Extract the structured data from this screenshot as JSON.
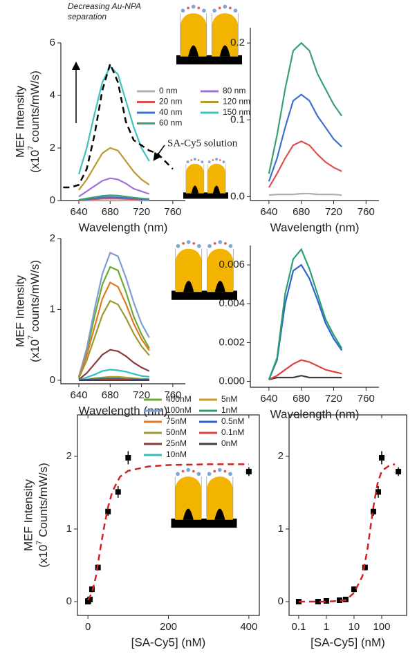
{
  "chart_data": [
    {
      "type": "line",
      "xlabel": "Wavelength (nm)",
      "ylabel": "MEF Intensity",
      "ylabel_unit": {
        "prefix": "(x10",
        "exponent": "7",
        "suffix": " counts/mW/s)"
      },
      "x": [
        640,
        650,
        660,
        670,
        680,
        690,
        700,
        710,
        720,
        730
      ],
      "xlim": [
        617,
        776
      ],
      "xticks": [
        640,
        680,
        720,
        760
      ],
      "ylim": [
        0,
        6
      ],
      "yticks": [
        0,
        2,
        4,
        6
      ],
      "series": [
        {
          "name": "0 nm",
          "color": "#b0b0b0",
          "values": [
            0,
            0,
            0,
            0,
            0,
            0,
            0,
            0,
            0,
            0
          ]
        },
        {
          "name": "20 nm",
          "color": "#e05050",
          "values": [
            0.01,
            0.03,
            0.05,
            0.07,
            0.07,
            0.07,
            0.06,
            0.05,
            0.04,
            0.03
          ]
        },
        {
          "name": "40 nm",
          "color": "#3f6fd0",
          "values": [
            0.02,
            0.05,
            0.09,
            0.12,
            0.13,
            0.12,
            0.1,
            0.08,
            0.06,
            0.05
          ]
        },
        {
          "name": "60 nm",
          "color": "#3aa070",
          "values": [
            0.03,
            0.08,
            0.13,
            0.18,
            0.2,
            0.19,
            0.15,
            0.11,
            0.08,
            0.06
          ]
        },
        {
          "name": "80 nm",
          "color": "#a070d8",
          "values": [
            0.15,
            0.35,
            0.55,
            0.75,
            0.85,
            0.8,
            0.65,
            0.45,
            0.35,
            0.25
          ]
        },
        {
          "name": "120 nm",
          "color": "#b89a30",
          "values": [
            0.4,
            0.8,
            1.3,
            1.8,
            2.0,
            1.9,
            1.5,
            1.1,
            0.8,
            0.6
          ]
        },
        {
          "name": "150 nm",
          "color": "#40c0c0",
          "values": [
            1.0,
            2.0,
            3.3,
            4.5,
            5.1,
            4.8,
            3.8,
            2.8,
            2.0,
            1.5
          ]
        },
        {
          "color": "#000000",
          "style": "dashed",
          "x": [
            620,
            630,
            640,
            650,
            660,
            670,
            680,
            690,
            700,
            710,
            720,
            730,
            740,
            750,
            760
          ],
          "values": [
            0.5,
            0.5,
            0.6,
            1.2,
            2.5,
            4.2,
            5.2,
            4.5,
            3.0,
            2.3,
            2.1,
            1.9,
            1.8,
            1.5,
            1.2
          ]
        }
      ],
      "annotations": [
        {
          "text": [
            "Decreasing Au-NPA",
            "separation"
          ]
        },
        {
          "text": [
            "SA-Cy5 solution"
          ]
        }
      ]
    },
    {
      "type": "line",
      "xlabel": "Wavelength (nm)",
      "x": [
        640,
        650,
        660,
        670,
        680,
        690,
        700,
        710,
        720,
        730
      ],
      "xlim": [
        617,
        776
      ],
      "xticks": [
        640,
        680,
        720,
        760
      ],
      "ylim": [
        -0.005,
        0.22
      ],
      "yticks": [
        {
          "value": 0,
          "label": "0.0"
        },
        0.1,
        0.2
      ],
      "series": [
        {
          "color": "#b0b0b0",
          "values": [
            0.002,
            0.003,
            0.003,
            0.003,
            0.004,
            0.004,
            0.003,
            0.003,
            0.003,
            0.002
          ]
        },
        {
          "color": "#e05050",
          "values": [
            0.012,
            0.03,
            0.05,
            0.067,
            0.072,
            0.067,
            0.055,
            0.045,
            0.038,
            0.033
          ]
        },
        {
          "color": "#3f6fd0",
          "values": [
            0.02,
            0.05,
            0.09,
            0.125,
            0.133,
            0.125,
            0.105,
            0.09,
            0.075,
            0.065
          ]
        },
        {
          "color": "#3aa070",
          "values": [
            0.03,
            0.08,
            0.14,
            0.19,
            0.2,
            0.19,
            0.16,
            0.14,
            0.12,
            0.105
          ]
        }
      ]
    },
    {
      "type": "line",
      "xlabel": "Wavelength (nm)",
      "ylabel": "MEF Intensity",
      "ylabel_unit": {
        "prefix": "(x10",
        "exponent": "7",
        "suffix": " counts/mW/s)"
      },
      "x": [
        640,
        650,
        660,
        670,
        680,
        690,
        700,
        710,
        720,
        730
      ],
      "xlim": [
        617,
        776
      ],
      "xticks": [
        640,
        680,
        720,
        760
      ],
      "ylim": [
        -0.05,
        2.0
      ],
      "yticks": [
        0,
        1,
        2
      ],
      "series": [
        {
          "name": "400nM",
          "color": "#6aaa30",
          "values": [
            0.05,
            0.4,
            0.9,
            1.35,
            1.6,
            1.55,
            1.25,
            0.9,
            0.65,
            0.45
          ]
        },
        {
          "name": "100nM",
          "color": "#7c9fd0",
          "values": [
            0.05,
            0.45,
            1.0,
            1.5,
            1.8,
            1.75,
            1.45,
            1.1,
            0.8,
            0.6
          ]
        },
        {
          "name": "75nM",
          "color": "#e07820",
          "values": [
            0.04,
            0.35,
            0.75,
            1.15,
            1.38,
            1.32,
            1.08,
            0.8,
            0.58,
            0.42
          ]
        },
        {
          "name": "50nM",
          "color": "#9a9a30",
          "values": [
            0.03,
            0.28,
            0.6,
            0.92,
            1.12,
            1.07,
            0.88,
            0.66,
            0.48,
            0.35
          ]
        },
        {
          "name": "25nM",
          "color": "#8a3a3a",
          "values": [
            0.01,
            0.1,
            0.23,
            0.36,
            0.43,
            0.41,
            0.34,
            0.25,
            0.18,
            0.13
          ]
        },
        {
          "name": "10nM",
          "color": "#30c0c0",
          "values": [
            0.005,
            0.04,
            0.08,
            0.13,
            0.15,
            0.14,
            0.12,
            0.09,
            0.06,
            0.05
          ]
        },
        {
          "name": "5nM",
          "color": "#c89a20",
          "values": [
            0,
            0.01,
            0.03,
            0.04,
            0.05,
            0.05,
            0.04,
            0.03,
            0.02,
            0.02
          ]
        },
        {
          "name": "1nM",
          "color": "#30a070",
          "values": [
            0,
            0.01,
            0.02,
            0.03,
            0.03,
            0.03,
            0.02,
            0.02,
            0.01,
            0.01
          ]
        },
        {
          "name": "0.5nM",
          "color": "#3060d0",
          "values": [
            0,
            0.01,
            0.01,
            0.02,
            0.02,
            0.02,
            0.01,
            0.01,
            0.01,
            0.01
          ]
        },
        {
          "name": "0.1nM",
          "color": "#e04040",
          "values": [
            0,
            0,
            0,
            0.01,
            0.01,
            0.01,
            0.01,
            0,
            0,
            0
          ]
        },
        {
          "name": "0nM",
          "color": "#404040",
          "values": [
            0,
            0,
            0,
            0,
            0,
            0,
            0,
            0,
            0,
            0
          ]
        }
      ]
    },
    {
      "type": "line",
      "xlabel": "Wavelength (nm)",
      "x": [
        640,
        650,
        660,
        670,
        680,
        690,
        700,
        710,
        720,
        730
      ],
      "xlim": [
        617,
        776
      ],
      "xticks": [
        640,
        680,
        720,
        760
      ],
      "ylim": [
        -0.0003,
        0.007
      ],
      "yticks": [
        {
          "value": 0,
          "label": "0.000"
        },
        {
          "value": 0.002,
          "label": "0.002"
        },
        {
          "value": 0.004,
          "label": "0.004"
        },
        {
          "value": 0.006,
          "label": "0.006"
        }
      ],
      "series": [
        {
          "color": "#404040",
          "values": [
            0.0001,
            0.0002,
            0.0002,
            0.0002,
            0.0003,
            0.0002,
            0.0002,
            0.0002,
            0.0002,
            0.0002
          ]
        },
        {
          "color": "#e04040",
          "values": [
            0.0001,
            0.0003,
            0.0006,
            0.0009,
            0.0011,
            0.001,
            0.0008,
            0.0006,
            0.0005,
            0.0004
          ]
        },
        {
          "color": "#3060d0",
          "values": [
            0.0001,
            0.0011,
            0.004,
            0.0057,
            0.006,
            0.0053,
            0.0042,
            0.003,
            0.0022,
            0.0016
          ]
        },
        {
          "color": "#2aa070",
          "values": [
            0.0001,
            0.0012,
            0.0045,
            0.0063,
            0.0068,
            0.0058,
            0.0045,
            0.0032,
            0.0024,
            0.0017
          ]
        }
      ]
    },
    {
      "type": "scatter",
      "xlabel": "[SA-Cy5] (nM)",
      "ylabel": "MEF Intensity",
      "ylabel_unit": {
        "prefix": "(x10",
        "exponent": "7",
        "suffix": " Counts/mW/s)"
      },
      "xlim": [
        -26,
        426
      ],
      "xticks": [
        0,
        200,
        400
      ],
      "ylim": [
        -0.19,
        2.57
      ],
      "yticks": [
        0,
        1,
        2
      ],
      "frame": true,
      "series": [
        {
          "color": "#000000",
          "marker": "square",
          "x": [
            0,
            0.1,
            0.5,
            1,
            5,
            10,
            25,
            50,
            75,
            100,
            400
          ],
          "values": [
            0,
            0,
            0.01,
            0.01,
            0.03,
            0.17,
            0.47,
            1.24,
            1.51,
            1.98,
            1.79
          ],
          "errors": [
            0.03,
            0.03,
            0.03,
            0.03,
            0.03,
            0.04,
            0.04,
            0.06,
            0.08,
            0.09,
            0.06
          ]
        },
        {
          "color": "#d42020",
          "style": "dashed",
          "x": [
            0,
            10,
            20,
            30,
            40,
            50,
            60,
            70,
            80,
            100,
            150,
            200,
            300,
            400
          ],
          "values": [
            0.02,
            0.12,
            0.35,
            0.7,
            1.02,
            1.3,
            1.5,
            1.62,
            1.72,
            1.8,
            1.86,
            1.88,
            1.89,
            1.89
          ]
        }
      ]
    },
    {
      "type": "scatter",
      "xlabel": "[SA-Cy5] (nM)",
      "xscale": "log",
      "xlim": [
        0.045,
        794
      ],
      "xticks": [
        0.1,
        1,
        10,
        100
      ],
      "ylim": [
        -0.19,
        2.57
      ],
      "yticks": [
        0,
        1,
        2
      ],
      "frame": true,
      "series": [
        {
          "color": "#000000",
          "marker": "square",
          "x": [
            0.1,
            0.5,
            1,
            3,
            5,
            10,
            25,
            50,
            75,
            100,
            400
          ],
          "values": [
            0,
            0,
            0.01,
            0.02,
            0.03,
            0.17,
            0.47,
            1.24,
            1.51,
            1.98,
            1.79
          ],
          "errors": [
            0.03,
            0.03,
            0.03,
            0.03,
            0.03,
            0.04,
            0.04,
            0.06,
            0.08,
            0.09,
            0.06
          ]
        },
        {
          "color": "#d42020",
          "style": "dashed",
          "x": [
            0.1,
            1,
            3,
            5,
            10,
            20,
            30,
            50,
            70,
            100,
            200,
            300
          ],
          "values": [
            0,
            0,
            0.01,
            0.02,
            0.12,
            0.35,
            0.7,
            1.3,
            1.62,
            1.8,
            1.88,
            1.89
          ]
        }
      ]
    }
  ]
}
